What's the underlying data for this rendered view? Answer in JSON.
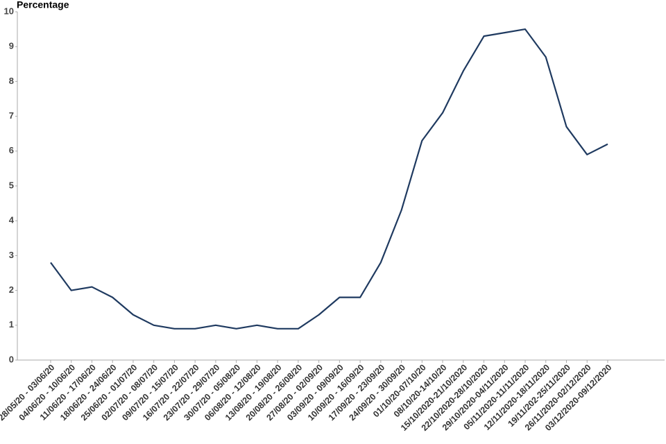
{
  "chart_data": {
    "type": "line",
    "y_label": "Percentage",
    "categories": [
      "28/05/20 - 03/06/20",
      "04/06/20 - 10/06/20",
      "11/06/20 - 17/06/20",
      "18/06/20 - 24/06/20",
      "25/06/20 - 01/07/20",
      "02/07/20 - 08/07/20",
      "09/07/20 - 15/07/20",
      "16/07/20 - 22/07/20",
      "23/07/20 - 29/07/20",
      "30/07/20 - 05/08/20",
      "06/08/20 - 12/08/20",
      "13/08/20 - 19/08/20",
      "20/08/20 - 26/08/20",
      "27/08/20 - 02/09/20",
      "03/09/20 - 09/09/20",
      "10/09/20 - 16/09/20",
      "17/09/20 - 23/09/20",
      "24/09/20 - 30/09/20",
      "01/10/20-07/10/20",
      "08/10/20-14/10/20",
      "15/10/2020-21/10/2020",
      "22/10/2020-28/10/2020",
      "29/10/2020-04/11/2020",
      "05/11/2020-11/11/2020",
      "12/11/2020-18/11/2020",
      "19/11/202-25/11/2020",
      "26/11/2020-02/12/2020",
      "03/12/2020-09/12/2020"
    ],
    "values": [
      2.8,
      2.0,
      2.1,
      1.8,
      1.3,
      1.0,
      0.9,
      0.9,
      1.0,
      0.9,
      1.0,
      0.9,
      0.9,
      1.3,
      1.8,
      1.8,
      2.8,
      4.3,
      6.3,
      7.1,
      8.3,
      9.3,
      9.4,
      9.5,
      8.7,
      6.7,
      5.9,
      6.2
    ],
    "color": "#1f3a60",
    "ylim": [
      0,
      10
    ],
    "yticks": [
      0,
      1,
      2,
      3,
      4,
      5,
      6,
      7,
      8,
      9,
      10
    ],
    "grid": false
  }
}
